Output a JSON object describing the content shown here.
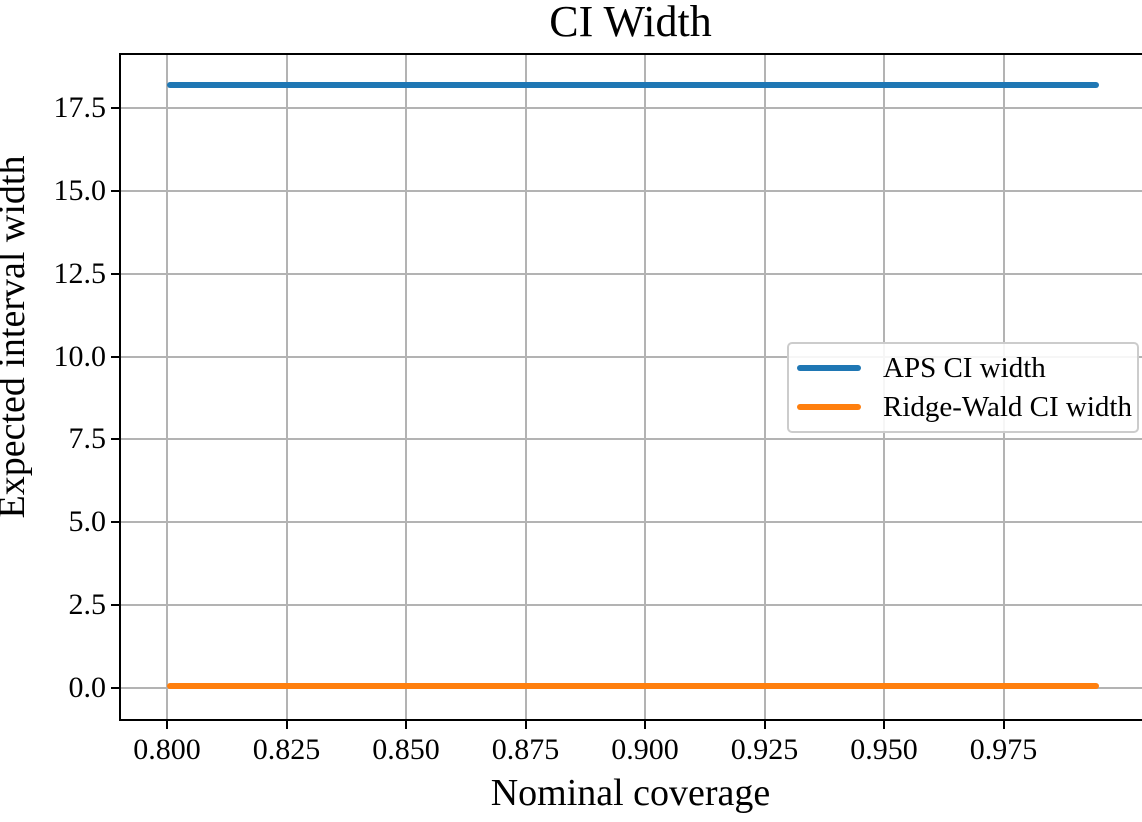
{
  "chart_data": {
    "type": "line",
    "title": "CI Width",
    "xlabel": "Nominal coverage",
    "ylabel": "Expected interval width",
    "x_tick_labels": [
      "0.800",
      "0.825",
      "0.850",
      "0.875",
      "0.900",
      "0.925",
      "0.950",
      "0.975"
    ],
    "y_tick_labels": [
      "0.0",
      "2.5",
      "5.0",
      "7.5",
      "10.0",
      "12.5",
      "15.0",
      "17.5"
    ],
    "xlim": [
      0.79,
      1.004
    ],
    "ylim": [
      -1.0,
      19.2
    ],
    "grid": true,
    "legend_position": "center right",
    "series": [
      {
        "name": "APS CI width",
        "color": "#1f77b4",
        "x_start": 0.8,
        "x_end": 0.995,
        "y_constant": 18.2
      },
      {
        "name": "Ridge-Wald CI width",
        "color": "#ff7f0e",
        "x_start": 0.8,
        "x_end": 0.995,
        "y_constant": 0.05
      }
    ],
    "colors": {
      "grid": "#b3b3b3",
      "axis": "#000000",
      "background": "#ffffff"
    }
  }
}
